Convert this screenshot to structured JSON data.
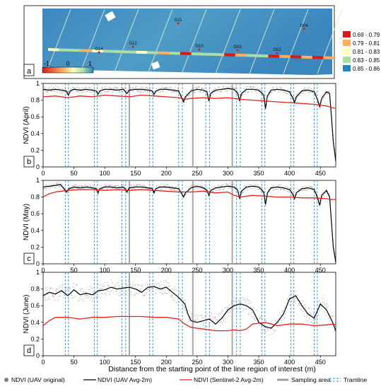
{
  "map_panel": {
    "panel_letter": "a",
    "field_labels": [
      "G11",
      "G04",
      "G12",
      "G10",
      "G03",
      "G02",
      "G14"
    ],
    "colorbar_ticks": [
      "-1",
      "0",
      "1"
    ],
    "legend": [
      {
        "label": "0.69 - 0.79",
        "color": "#d7191c"
      },
      {
        "label": "0.79 - 0.81",
        "color": "#fdae61"
      },
      {
        "label": "0.81 - 0.83",
        "color": "#ffffbf"
      },
      {
        "label": "0.83 - 0.85",
        "color": "#abdda4"
      },
      {
        "label": "0.85 - 0.86",
        "color": "#2b83ba"
      }
    ]
  },
  "chart_data": [
    {
      "type": "line",
      "panel_letter": "b",
      "ylabel": "NDVI (April)",
      "xlim": [
        0,
        475
      ],
      "ylim": [
        0,
        1
      ],
      "x_ticks": [
        0,
        50,
        100,
        150,
        200,
        250,
        300,
        350,
        400,
        450
      ],
      "y_ticks": [
        0,
        0.2,
        0.4,
        0.6,
        0.8,
        1
      ],
      "series": [
        {
          "name": "NDVI (UAV Avg-2m)",
          "x": [
            0,
            10,
            20,
            30,
            38,
            41,
            44,
            50,
            60,
            70,
            80,
            86,
            89,
            92,
            100,
            110,
            120,
            130,
            133,
            136,
            140,
            150,
            160,
            170,
            177,
            180,
            183,
            190,
            200,
            210,
            220,
            225,
            228,
            231,
            240,
            250,
            260,
            266,
            269,
            272,
            280,
            290,
            300,
            310,
            316,
            319,
            322,
            330,
            340,
            350,
            358,
            361,
            364,
            370,
            380,
            390,
            400,
            405,
            408,
            411,
            420,
            430,
            440,
            445,
            449,
            452,
            460,
            465,
            468,
            471,
            475
          ],
          "y": [
            0.93,
            0.92,
            0.93,
            0.92,
            0.91,
            0.86,
            0.91,
            0.93,
            0.92,
            0.93,
            0.92,
            0.91,
            0.87,
            0.91,
            0.93,
            0.93,
            0.92,
            0.93,
            0.91,
            0.88,
            0.92,
            0.93,
            0.93,
            0.92,
            0.91,
            0.87,
            0.91,
            0.93,
            0.93,
            0.92,
            0.91,
            0.83,
            0.78,
            0.84,
            0.91,
            0.93,
            0.92,
            0.9,
            0.79,
            0.88,
            0.92,
            0.93,
            0.94,
            0.93,
            0.88,
            0.79,
            0.88,
            0.93,
            0.93,
            0.92,
            0.86,
            0.7,
            0.85,
            0.92,
            0.93,
            0.92,
            0.9,
            0.83,
            0.77,
            0.84,
            0.91,
            0.92,
            0.9,
            0.81,
            0.72,
            0.82,
            0.9,
            0.88,
            0.6,
            0.3,
            0.07
          ]
        },
        {
          "name": "NDVI (Sentinel-2 Avg-2m)",
          "x": [
            0,
            20,
            40,
            60,
            80,
            100,
            120,
            140,
            160,
            180,
            200,
            220,
            230,
            240,
            260,
            280,
            300,
            320,
            340,
            360,
            380,
            400,
            420,
            440,
            460,
            470,
            475
          ],
          "y": [
            0.84,
            0.85,
            0.83,
            0.85,
            0.84,
            0.86,
            0.85,
            0.84,
            0.86,
            0.85,
            0.84,
            0.83,
            0.81,
            0.82,
            0.83,
            0.82,
            0.83,
            0.81,
            0.8,
            0.79,
            0.78,
            0.77,
            0.76,
            0.75,
            0.73,
            0.71,
            0.7
          ]
        }
      ],
      "sampling_area": [
        140,
        243,
        307
      ],
      "tramline": [
        36,
        41,
        83,
        88,
        128,
        134,
        173,
        178,
        220,
        226,
        264,
        270,
        314,
        320,
        355,
        360,
        402,
        407,
        440,
        445
      ]
    },
    {
      "type": "line",
      "panel_letter": "c",
      "ylabel": "NDVI (May)",
      "xlim": [
        0,
        475
      ],
      "ylim": [
        0,
        1
      ],
      "x_ticks": [
        0,
        50,
        100,
        150,
        200,
        250,
        300,
        350,
        400,
        450
      ],
      "y_ticks": [
        0,
        0.2,
        0.4,
        0.6,
        0.8,
        1
      ],
      "series": [
        {
          "name": "NDVI (UAV Avg-2m)",
          "x": [
            0,
            10,
            20,
            28,
            34,
            38,
            42,
            50,
            60,
            70,
            80,
            86,
            89,
            92,
            100,
            110,
            120,
            130,
            133,
            136,
            140,
            150,
            160,
            170,
            177,
            180,
            183,
            190,
            200,
            210,
            220,
            225,
            228,
            231,
            240,
            250,
            260,
            266,
            269,
            272,
            280,
            290,
            300,
            310,
            316,
            319,
            322,
            330,
            340,
            350,
            358,
            361,
            364,
            370,
            380,
            390,
            400,
            405,
            408,
            411,
            420,
            430,
            440,
            445,
            449,
            452,
            460,
            465,
            468,
            471,
            475
          ],
          "y": [
            0.92,
            0.93,
            0.94,
            0.95,
            0.9,
            0.86,
            0.9,
            0.92,
            0.91,
            0.92,
            0.91,
            0.9,
            0.85,
            0.9,
            0.92,
            0.92,
            0.91,
            0.92,
            0.9,
            0.86,
            0.91,
            0.92,
            0.92,
            0.91,
            0.9,
            0.85,
            0.9,
            0.92,
            0.92,
            0.91,
            0.9,
            0.84,
            0.8,
            0.85,
            0.91,
            0.93,
            0.91,
            0.88,
            0.82,
            0.88,
            0.91,
            0.92,
            0.93,
            0.92,
            0.88,
            0.78,
            0.87,
            0.92,
            0.93,
            0.92,
            0.86,
            0.71,
            0.85,
            0.91,
            0.92,
            0.91,
            0.89,
            0.84,
            0.78,
            0.85,
            0.9,
            0.91,
            0.89,
            0.8,
            0.7,
            0.82,
            0.88,
            0.8,
            0.5,
            0.2,
            0.02
          ]
        },
        {
          "name": "NDVI (Sentinel-2 Avg-2m)",
          "x": [
            0,
            10,
            20,
            30,
            40,
            60,
            80,
            100,
            120,
            140,
            160,
            180,
            200,
            220,
            240,
            260,
            280,
            300,
            310,
            320,
            340,
            360,
            380,
            400,
            420,
            440,
            460,
            470,
            475
          ],
          "y": [
            0.8,
            0.84,
            0.86,
            0.87,
            0.88,
            0.89,
            0.89,
            0.88,
            0.89,
            0.88,
            0.89,
            0.88,
            0.87,
            0.86,
            0.86,
            0.87,
            0.85,
            0.86,
            0.82,
            0.8,
            0.82,
            0.81,
            0.8,
            0.8,
            0.79,
            0.79,
            0.78,
            0.77,
            0.77
          ]
        }
      ],
      "sampling_area": [
        140,
        243,
        307
      ],
      "tramline": [
        36,
        41,
        83,
        88,
        128,
        134,
        173,
        178,
        220,
        226,
        264,
        270,
        314,
        320,
        355,
        360,
        402,
        407,
        440,
        445
      ]
    },
    {
      "type": "line",
      "panel_letter": "d",
      "ylabel": "NDVI (June)",
      "xlabel": "Distance from the starting point of the line region of interest (m)",
      "xlim": [
        0,
        475
      ],
      "ylim": [
        0,
        1
      ],
      "x_ticks": [
        0,
        50,
        100,
        150,
        200,
        250,
        300,
        350,
        400,
        450
      ],
      "y_ticks": [
        0,
        0.2,
        0.4,
        0.6,
        0.8,
        1
      ],
      "series": [
        {
          "name": "NDVI (UAV Avg-2m)",
          "x": [
            0,
            10,
            20,
            30,
            40,
            50,
            60,
            70,
            80,
            90,
            100,
            110,
            120,
            130,
            140,
            150,
            160,
            170,
            180,
            190,
            200,
            210,
            220,
            230,
            235,
            240,
            250,
            260,
            270,
            280,
            290,
            300,
            310,
            320,
            330,
            340,
            350,
            360,
            370,
            380,
            390,
            400,
            410,
            420,
            430,
            440,
            450,
            460,
            470,
            475
          ],
          "y": [
            0.72,
            0.76,
            0.74,
            0.78,
            0.72,
            0.79,
            0.73,
            0.75,
            0.73,
            0.78,
            0.79,
            0.82,
            0.8,
            0.81,
            0.82,
            0.8,
            0.76,
            0.82,
            0.83,
            0.8,
            0.82,
            0.76,
            0.7,
            0.62,
            0.5,
            0.42,
            0.4,
            0.42,
            0.44,
            0.38,
            0.45,
            0.55,
            0.6,
            0.62,
            0.6,
            0.55,
            0.4,
            0.35,
            0.33,
            0.4,
            0.5,
            0.68,
            0.72,
            0.6,
            0.5,
            0.45,
            0.62,
            0.55,
            0.4,
            0.3
          ]
        },
        {
          "name": "NDVI (Sentinel-2 Avg-2m)",
          "x": [
            0,
            10,
            20,
            40,
            60,
            80,
            100,
            120,
            140,
            160,
            180,
            200,
            220,
            230,
            240,
            250,
            260,
            280,
            300,
            310,
            320,
            330,
            340,
            360,
            380,
            400,
            420,
            440,
            460,
            470,
            475
          ],
          "y": [
            0.36,
            0.42,
            0.46,
            0.46,
            0.44,
            0.46,
            0.46,
            0.47,
            0.47,
            0.47,
            0.46,
            0.46,
            0.44,
            0.38,
            0.34,
            0.33,
            0.32,
            0.3,
            0.3,
            0.31,
            0.3,
            0.32,
            0.38,
            0.4,
            0.36,
            0.38,
            0.38,
            0.36,
            0.37,
            0.38,
            0.37
          ]
        }
      ],
      "sampling_area": [
        140,
        243,
        307
      ],
      "tramline": [
        36,
        41,
        83,
        88,
        128,
        134,
        173,
        178,
        220,
        226,
        264,
        270,
        314,
        320,
        355,
        360,
        402,
        407,
        440,
        445
      ]
    }
  ],
  "legend": [
    {
      "label": "NDVI (UAV original)",
      "kind": "dot",
      "color": "#808080"
    },
    {
      "label": "NDVI (UAV Avg-2m)",
      "kind": "line",
      "color": "#000000"
    },
    {
      "label": "NDVI (Sentinel-2 Avg-2m)",
      "kind": "line",
      "color": "#e32219"
    },
    {
      "label": "Sampling area",
      "kind": "thick",
      "color": "#a0a0a0"
    },
    {
      "label": "Tramline",
      "kind": "dashed",
      "color": "#2f8fd6"
    }
  ]
}
